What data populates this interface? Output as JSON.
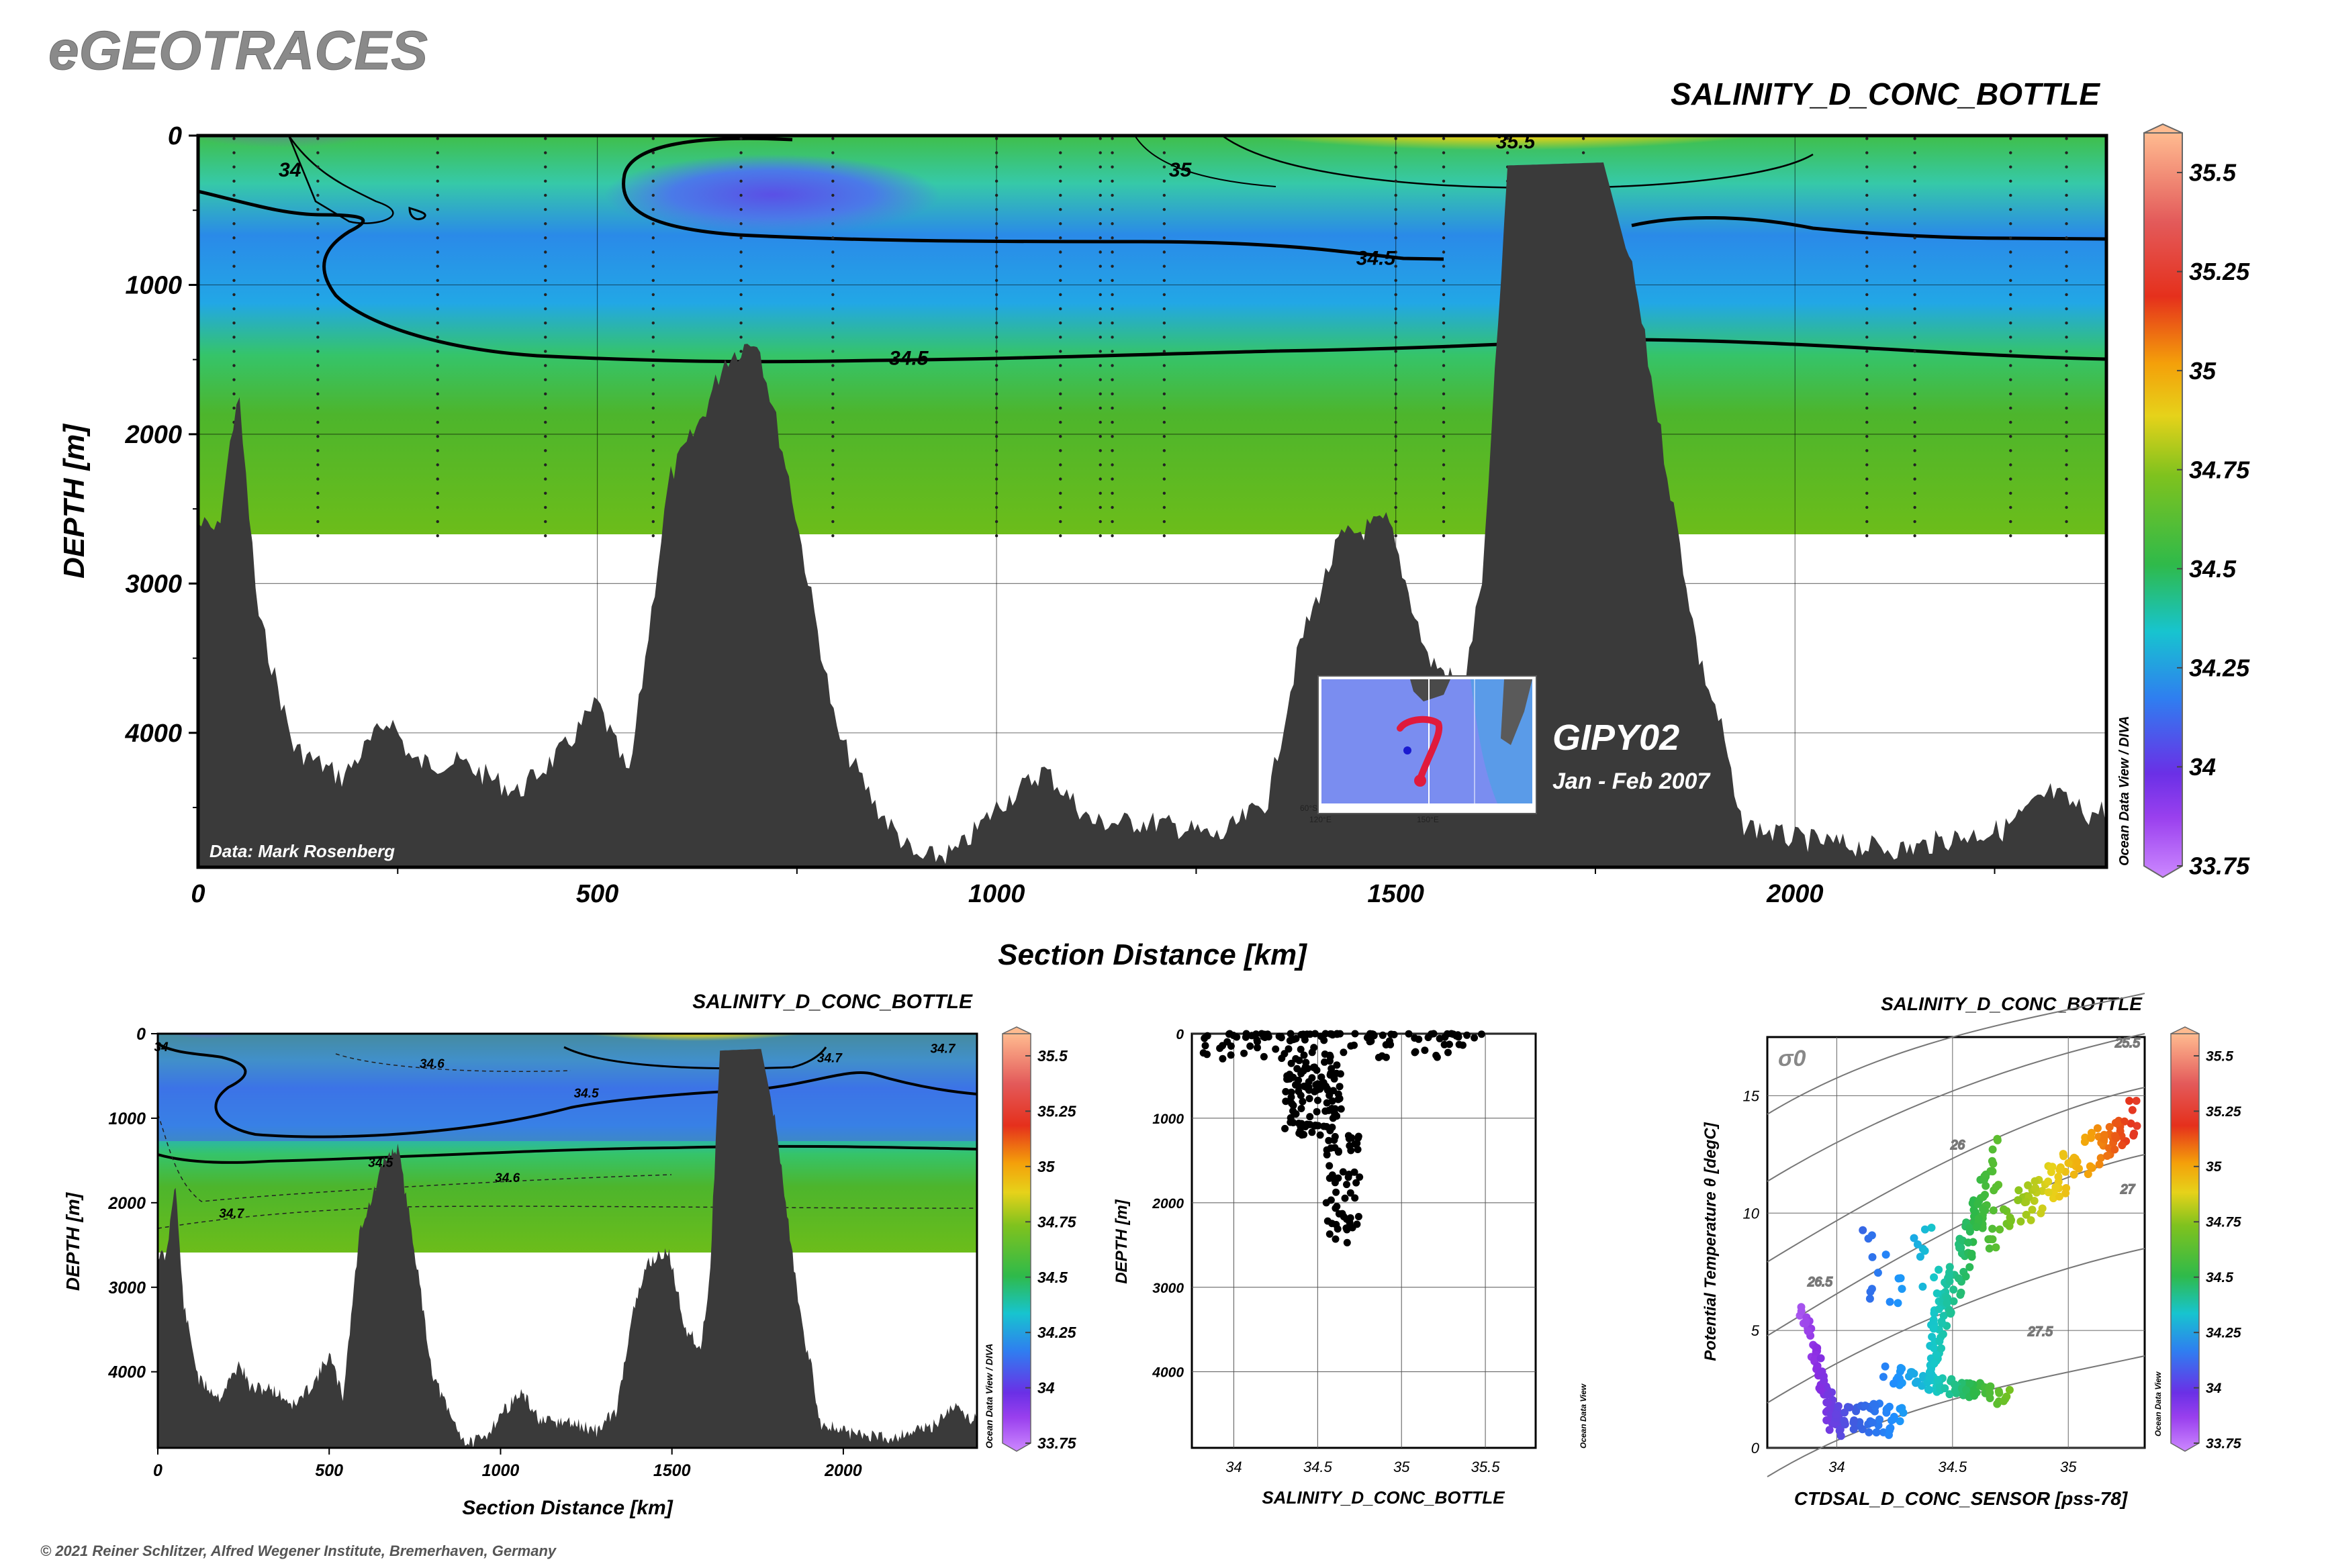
{
  "header": {
    "logo": "eGEOTRACES",
    "copyright": "© 2021 Reiner Schlitzer, Alfred Wegener Institute, Bremerhaven, Germany"
  },
  "colors": {
    "bathymetry": "#3a3a3a",
    "colormap": [
      "#cc88ff",
      "#8a2be2",
      "#3a5fe0",
      "#1e90ff",
      "#16c8c8",
      "#2db84a",
      "#7cc21e",
      "#e8d21a",
      "#f4a10a",
      "#e5341c",
      "#e06060",
      "#ffb48a"
    ]
  },
  "main_section": {
    "title": "SALINITY_D_CONC_BOTTLE",
    "xlabel": "Section Distance [km]",
    "ylabel": "DEPTH [m]",
    "credit": "Data: Mark Rosenberg",
    "side_credit": "Ocean Data View / DIVA",
    "cruise": "GIPY02",
    "dates": "Jan - Feb 2007",
    "inset_labels": [
      "60°S",
      "120°E",
      "150°E"
    ]
  },
  "small_section": {
    "title": "SALINITY_D_CONC_BOTTLE",
    "xlabel": "Section Distance [km]",
    "ylabel": "DEPTH [m]",
    "side_credit": "Ocean Data View / DIVA"
  },
  "profile": {
    "xlabel": "SALINITY_D_CONC_BOTTLE",
    "ylabel": "DEPTH [m]",
    "side_credit": "Ocean Data View"
  },
  "ts": {
    "title": "SALINITY_D_CONC_BOTTLE",
    "xlabel": "CTDSAL_D_CONC_SENSOR [pss-78]",
    "ylabel": "Potential Temperature θ [degC]",
    "sigma": "σ0",
    "side_credit": "Ocean Data View"
  },
  "chart_data": [
    {
      "type": "heatmap",
      "title": "SALINITY_D_CONC_BOTTLE",
      "xlabel": "Section Distance [km]",
      "ylabel": "DEPTH [m]",
      "xlim": [
        0,
        2390
      ],
      "ylim": [
        4900,
        0
      ],
      "x_ticks": [
        0,
        500,
        1000,
        1500,
        2000
      ],
      "y_ticks": [
        0,
        1000,
        2000,
        3000,
        4000
      ],
      "colorbar": {
        "min": 33.75,
        "max": 35.6,
        "ticks": [
          33.75,
          34,
          34.25,
          34.5,
          34.75,
          35,
          35.25,
          35.5
        ]
      },
      "contour_labels": [
        {
          "value": "34",
          "x": 115,
          "depth": 230
        },
        {
          "value": "35.5",
          "x": 1650,
          "depth": 40
        },
        {
          "value": "35",
          "x": 1230,
          "depth": 230
        },
        {
          "value": "34.5",
          "x": 1475,
          "depth": 820
        },
        {
          "value": "34.5",
          "x": 890,
          "depth": 1490
        }
      ],
      "field_depth_max": 2680,
      "grid": true
    },
    {
      "type": "heatmap",
      "title": "SALINITY_D_CONC_BOTTLE",
      "xlabel": "Section Distance [km]",
      "ylabel": "DEPTH [m]",
      "xlim": [
        0,
        2390
      ],
      "ylim": [
        4900,
        0
      ],
      "x_ticks": [
        0,
        500,
        1000,
        1500,
        2000
      ],
      "y_ticks": [
        0,
        1000,
        2000,
        3000,
        4000
      ],
      "colorbar": {
        "min": 33.75,
        "max": 35.6,
        "ticks": [
          33.75,
          34,
          34.25,
          34.5,
          34.75,
          35,
          35.25,
          35.5
        ]
      },
      "contour_labels": [
        {
          "value": "34",
          "x": 10,
          "depth": 150
        },
        {
          "value": "34.6",
          "x": 800,
          "depth": 350
        },
        {
          "value": "34.7",
          "x": 1960,
          "depth": 280
        },
        {
          "value": "34.7",
          "x": 2290,
          "depth": 170
        },
        {
          "value": "34.5",
          "x": 1250,
          "depth": 700
        },
        {
          "value": "34.5",
          "x": 650,
          "depth": 1520
        },
        {
          "value": "34.6",
          "x": 1020,
          "depth": 1700
        },
        {
          "value": "34.7",
          "x": 215,
          "depth": 2120
        }
      ],
      "field_depth_max": 2620
    },
    {
      "type": "scatter",
      "xlabel": "SALINITY_D_CONC_BOTTLE",
      "ylabel": "DEPTH [m]",
      "xlim": [
        33.75,
        35.8
      ],
      "ylim": [
        4900,
        0
      ],
      "x_ticks": [
        34,
        34.5,
        35,
        35.5
      ],
      "y_ticks": [
        0,
        1000,
        2000,
        3000,
        4000
      ],
      "grid": true
    },
    {
      "type": "scatter",
      "title": "SALINITY_D_CONC_BOTTLE",
      "xlabel": "CTDSAL_D_CONC_SENSOR [pss-78]",
      "ylabel": "Potential Temperature θ [degC]",
      "xlim": [
        33.7,
        35.33
      ],
      "ylim": [
        0,
        17.5
      ],
      "x_ticks": [
        34,
        34.5,
        35
      ],
      "y_ticks": [
        0,
        5,
        10,
        15
      ],
      "density_labels": [
        "25.5",
        "26",
        "26.5",
        "27",
        "27.5"
      ],
      "colorbar": {
        "min": 33.75,
        "max": 35.6,
        "ticks": [
          33.75,
          34,
          34.25,
          34.5,
          34.75,
          35,
          35.25,
          35.5
        ]
      },
      "grid": true
    }
  ]
}
